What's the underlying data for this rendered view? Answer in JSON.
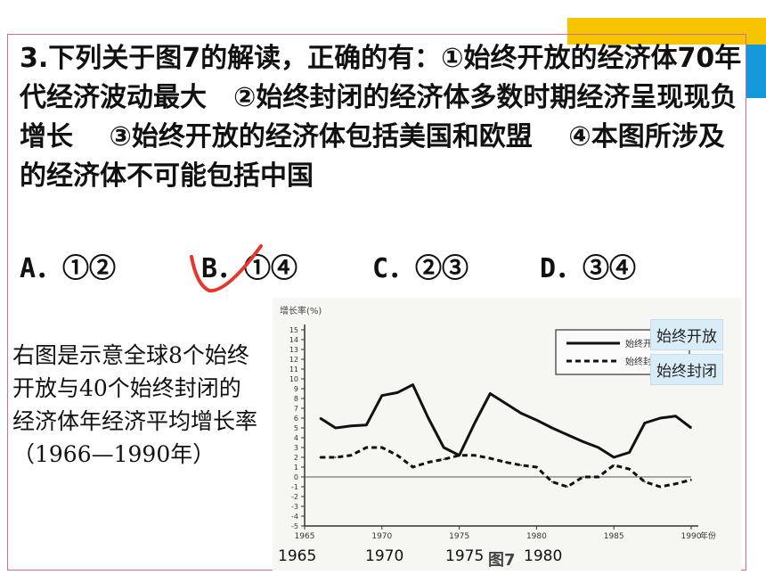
{
  "question": {
    "text": "3.下列关于图7的解读，正确的有：①始终开放的经济体70年代经济波动最大　②始终封闭的经济体多数时期经济呈现现负增长　 ③始终开放的经济体包括美国和欧盟　 ④本图所涉及的经济体不可能包括中国",
    "options": [
      {
        "label": "A．①②"
      },
      {
        "label": "B．①④"
      },
      {
        "label": "C．②③"
      },
      {
        "label": "D．③④"
      }
    ]
  },
  "description": "右图是示意全球8个始终开放与40个始终封闭的经济体年经济平均增长率（1966—1990年）",
  "legend": {
    "open": "始终开放",
    "closed": "始终封闭"
  },
  "year_labels": [
    "1965",
    "1970",
    "1975",
    "1980"
  ],
  "figure_label": "图7",
  "colors": {
    "check_mark": "#e8342a",
    "frame": "#d86a9a",
    "accent_yellow": "#f7c400",
    "accent_blue": "#1598d9"
  },
  "chart_data": {
    "type": "line",
    "title": "",
    "ylabel": "增长率(%)",
    "xlabel": "年份",
    "xlim": [
      1965,
      1990
    ],
    "ylim": [
      -5,
      15
    ],
    "y_ticks": [
      15,
      14,
      13,
      12,
      11,
      10,
      9,
      8,
      7,
      6,
      5,
      4,
      3,
      2,
      1,
      0,
      -1,
      -2,
      -3,
      -4,
      -5
    ],
    "x_ticks": [
      1965,
      1970,
      1975,
      1980,
      1985,
      1990
    ],
    "x_tick_labels": [
      "1965",
      "1970",
      "1975",
      "1980",
      "1985",
      "1990"
    ],
    "x_axis_suffix": "年份",
    "series": [
      {
        "name": "始终开放",
        "style": "solid",
        "x": [
          1966,
          1967,
          1968,
          1969,
          1970,
          1971,
          1972,
          1973,
          1974,
          1975,
          1976,
          1977,
          1978,
          1979,
          1980,
          1981,
          1982,
          1983,
          1984,
          1985,
          1986,
          1987,
          1988,
          1989,
          1990
        ],
        "values": [
          6.0,
          5.0,
          5.2,
          5.3,
          8.3,
          8.6,
          9.4,
          6.0,
          3.0,
          2.2,
          5.5,
          8.5,
          7.5,
          6.5,
          5.8,
          5.0,
          4.3,
          3.6,
          3.0,
          2.0,
          2.5,
          5.5,
          6.0,
          6.2,
          5.0
        ]
      },
      {
        "name": "始终封闭",
        "style": "dashed",
        "x": [
          1966,
          1967,
          1968,
          1969,
          1970,
          1971,
          1972,
          1973,
          1974,
          1975,
          1976,
          1977,
          1978,
          1979,
          1980,
          1981,
          1982,
          1983,
          1984,
          1985,
          1986,
          1987,
          1988,
          1989,
          1990
        ],
        "values": [
          2.0,
          2.0,
          2.2,
          3.0,
          3.0,
          2.2,
          1.0,
          1.5,
          1.8,
          2.2,
          2.2,
          1.9,
          1.5,
          1.2,
          1.0,
          -0.5,
          -1.0,
          0.0,
          0.0,
          1.2,
          0.8,
          -0.5,
          -1.0,
          -0.7,
          -0.3
        ]
      }
    ],
    "grid": false,
    "legend_position": "top-right"
  }
}
